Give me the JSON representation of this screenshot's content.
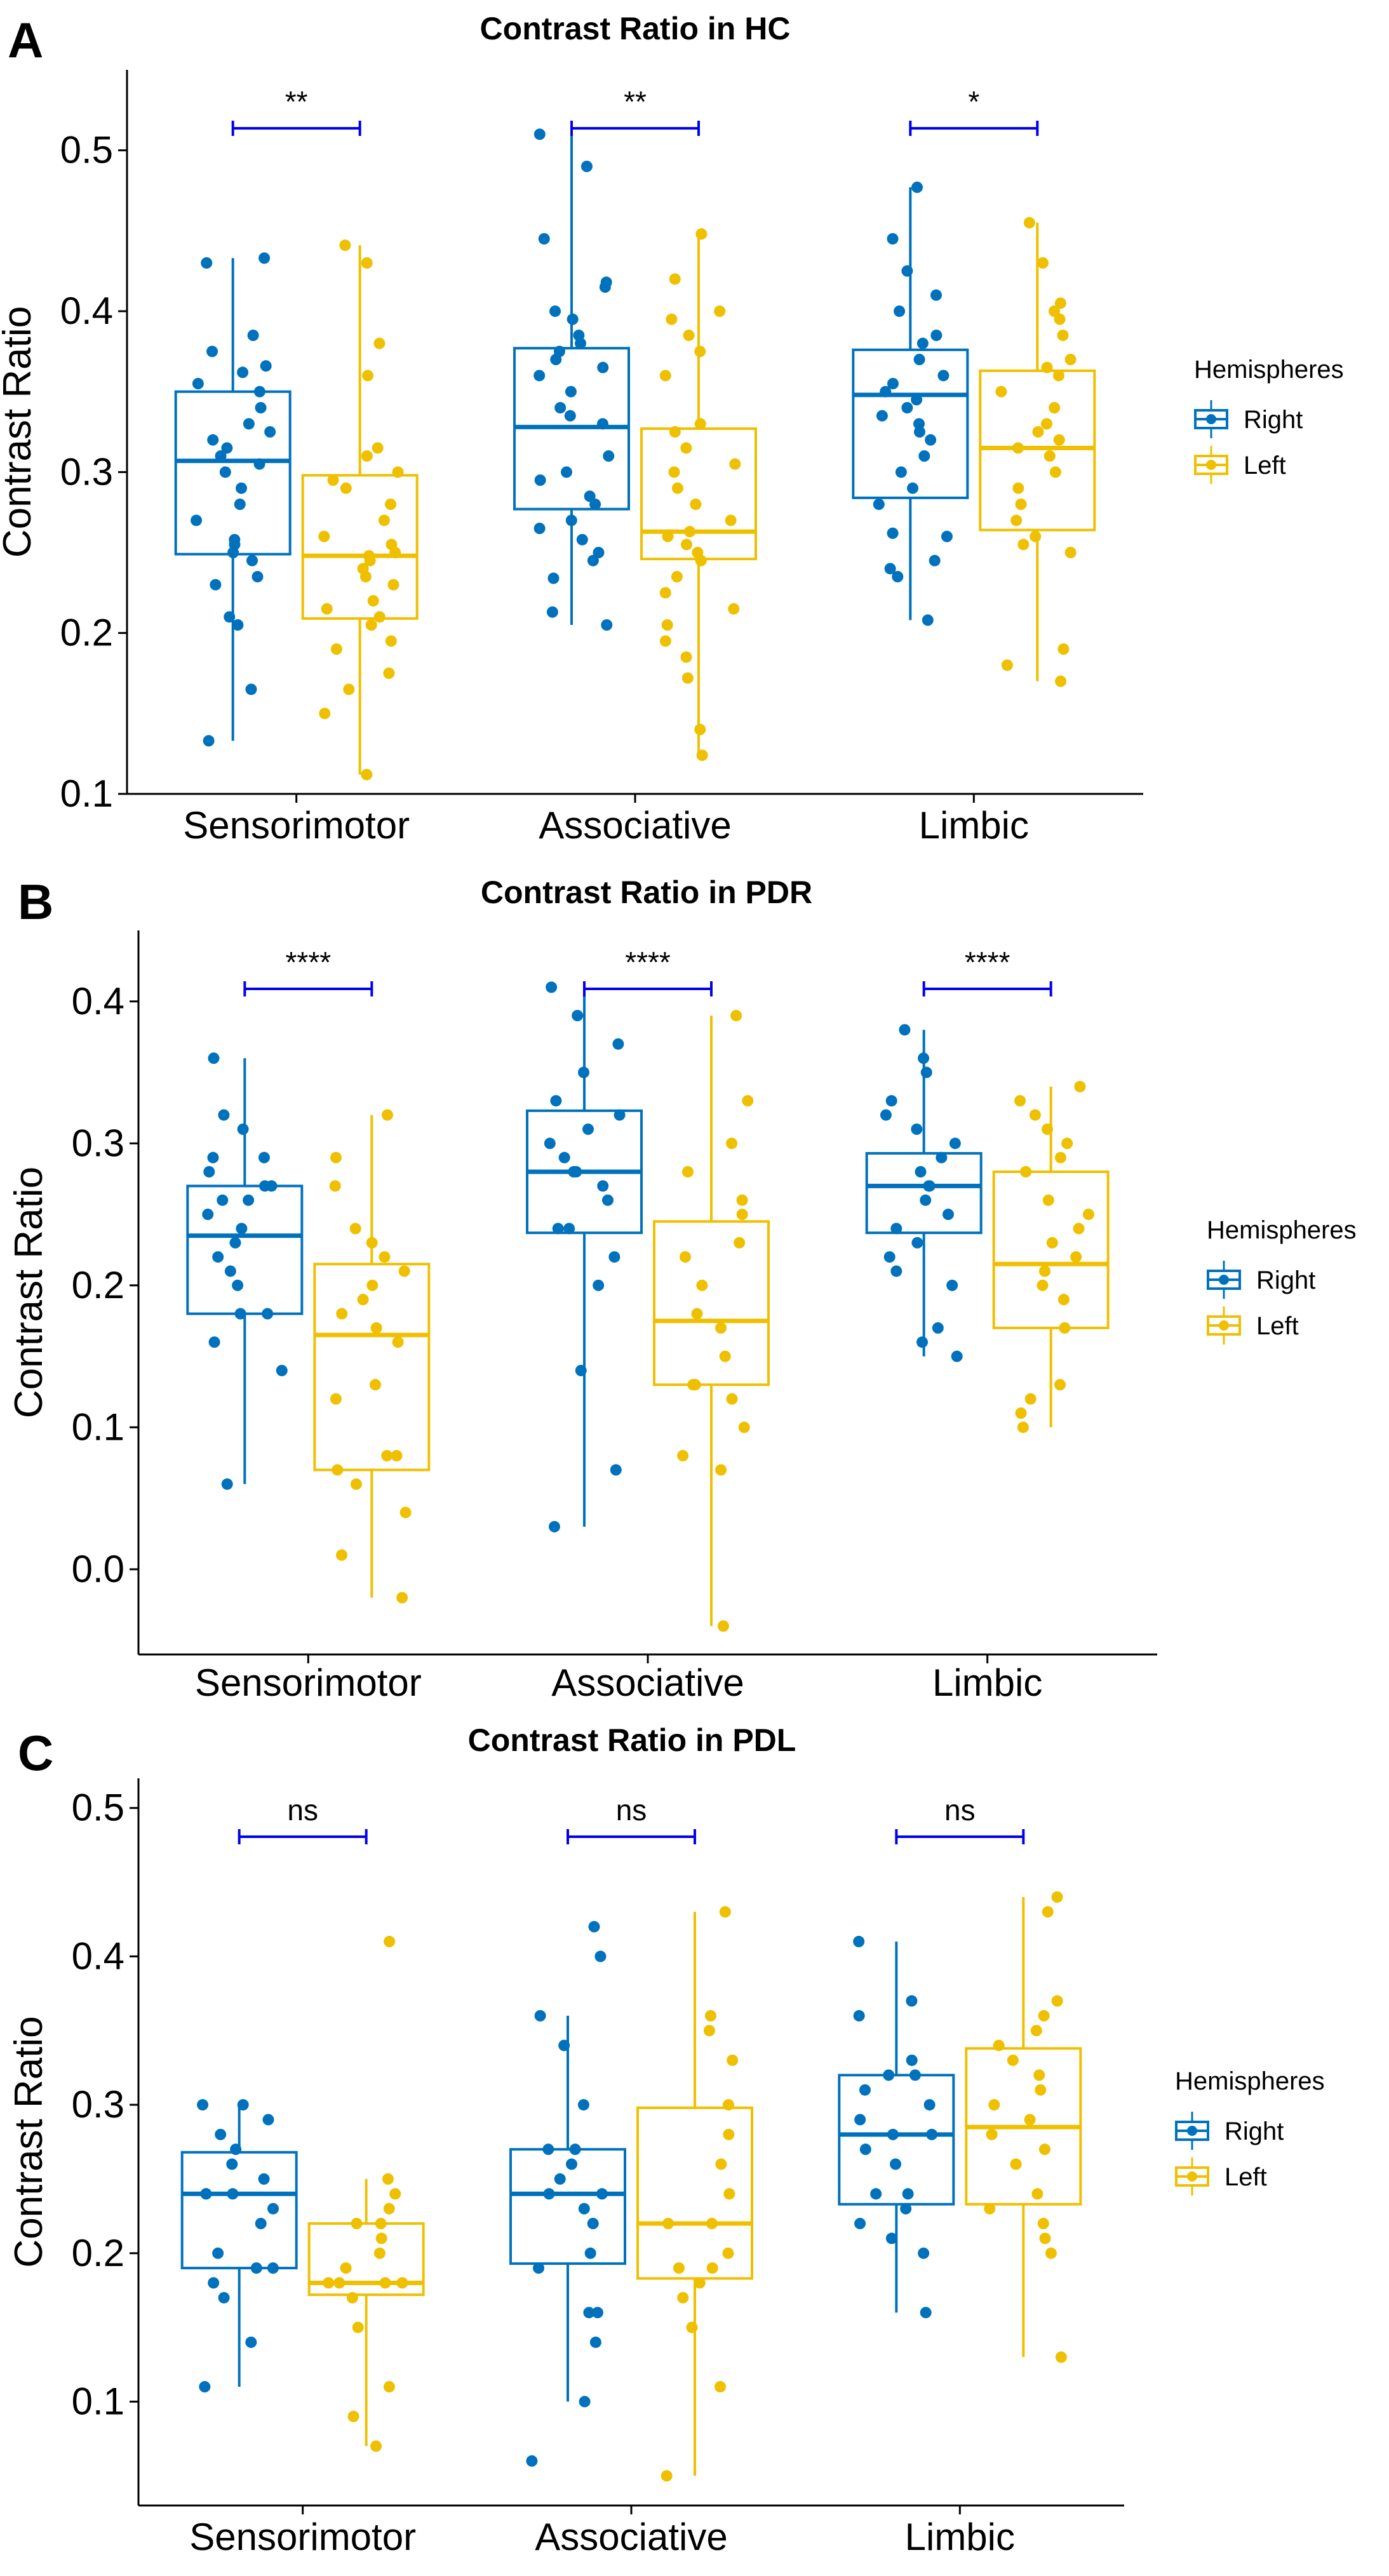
{
  "colors": {
    "right": "#0072BD",
    "left": "#EFC000",
    "bracket": "#0000EE"
  },
  "legend": {
    "title": "Hemispheres",
    "items": [
      "Right",
      "Left"
    ]
  },
  "chart_data": [
    {
      "type": "box",
      "panel": "A",
      "title": "Contrast Ratio in HC",
      "xlabel": "",
      "ylabel": "Contrast Ratio",
      "ylim": [
        0.1,
        0.55
      ],
      "yticks": [
        0.1,
        0.2,
        0.3,
        0.4,
        0.5
      ],
      "ytick_labels": [
        "0.1",
        "0.2",
        "0.3",
        "0.4",
        "0.5"
      ],
      "categories": [
        "Sensorimotor",
        "Associative",
        "Limbic"
      ],
      "significance": [
        "**",
        "**",
        "*"
      ],
      "series": [
        {
          "name": "Right",
          "boxes": [
            {
              "min": 0.133,
              "q1": 0.249,
              "median": 0.307,
              "q3": 0.35,
              "max": 0.433
            },
            {
              "min": 0.205,
              "q1": 0.277,
              "median": 0.328,
              "q3": 0.377,
              "max": 0.51
            },
            {
              "min": 0.208,
              "q1": 0.284,
              "median": 0.348,
              "q3": 0.376,
              "max": 0.477
            }
          ],
          "points": [
            [
              0.133,
              0.165,
              0.205,
              0.21,
              0.23,
              0.235,
              0.245,
              0.25,
              0.255,
              0.258,
              0.27,
              0.28,
              0.29,
              0.3,
              0.305,
              0.31,
              0.315,
              0.32,
              0.325,
              0.33,
              0.34,
              0.35,
              0.355,
              0.362,
              0.366,
              0.375,
              0.385,
              0.43,
              0.433
            ],
            [
              0.205,
              0.213,
              0.234,
              0.245,
              0.25,
              0.258,
              0.265,
              0.27,
              0.28,
              0.285,
              0.295,
              0.3,
              0.31,
              0.33,
              0.335,
              0.34,
              0.35,
              0.36,
              0.365,
              0.37,
              0.375,
              0.38,
              0.385,
              0.395,
              0.4,
              0.415,
              0.418,
              0.445,
              0.49,
              0.51
            ],
            [
              0.208,
              0.235,
              0.24,
              0.245,
              0.26,
              0.262,
              0.28,
              0.29,
              0.3,
              0.31,
              0.32,
              0.325,
              0.33,
              0.335,
              0.34,
              0.345,
              0.35,
              0.355,
              0.36,
              0.37,
              0.38,
              0.385,
              0.4,
              0.41,
              0.425,
              0.445,
              0.477
            ]
          ]
        },
        {
          "name": "Left",
          "boxes": [
            {
              "min": 0.112,
              "q1": 0.209,
              "median": 0.248,
              "q3": 0.298,
              "max": 0.441
            },
            {
              "min": 0.124,
              "q1": 0.246,
              "median": 0.263,
              "q3": 0.327,
              "max": 0.448
            },
            {
              "min": 0.17,
              "q1": 0.264,
              "median": 0.315,
              "q3": 0.363,
              "max": 0.455
            }
          ],
          "points": [
            [
              0.112,
              0.15,
              0.165,
              0.175,
              0.19,
              0.195,
              0.205,
              0.21,
              0.215,
              0.22,
              0.23,
              0.235,
              0.24,
              0.245,
              0.248,
              0.25,
              0.255,
              0.26,
              0.27,
              0.28,
              0.29,
              0.295,
              0.3,
              0.31,
              0.315,
              0.36,
              0.38,
              0.43,
              0.441
            ],
            [
              0.124,
              0.14,
              0.172,
              0.185,
              0.195,
              0.205,
              0.215,
              0.225,
              0.235,
              0.245,
              0.25,
              0.255,
              0.26,
              0.263,
              0.27,
              0.28,
              0.29,
              0.3,
              0.305,
              0.315,
              0.325,
              0.33,
              0.36,
              0.375,
              0.385,
              0.395,
              0.4,
              0.42,
              0.448
            ],
            [
              0.17,
              0.18,
              0.19,
              0.25,
              0.255,
              0.26,
              0.27,
              0.28,
              0.29,
              0.3,
              0.31,
              0.315,
              0.32,
              0.325,
              0.33,
              0.34,
              0.35,
              0.36,
              0.365,
              0.37,
              0.385,
              0.395,
              0.4,
              0.405,
              0.43,
              0.455
            ]
          ]
        }
      ]
    },
    {
      "type": "box",
      "panel": "B",
      "title": "Contrast Ratio in PDR",
      "xlabel": "",
      "ylabel": "Contrast Ratio",
      "ylim": [
        -0.06,
        0.45
      ],
      "yticks": [
        0.0,
        0.1,
        0.2,
        0.3,
        0.4
      ],
      "ytick_labels": [
        "0.0",
        "0.1",
        "0.2",
        "0.3",
        "0.4"
      ],
      "categories": [
        "Sensorimotor",
        "Associative",
        "Limbic"
      ],
      "significance": [
        "****",
        "****",
        "****"
      ],
      "series": [
        {
          "name": "Right",
          "boxes": [
            {
              "min": 0.06,
              "q1": 0.18,
              "median": 0.235,
              "q3": 0.27,
              "max": 0.36
            },
            {
              "min": 0.03,
              "q1": 0.237,
              "median": 0.28,
              "q3": 0.323,
              "max": 0.41
            },
            {
              "min": 0.15,
              "q1": 0.237,
              "median": 0.27,
              "q3": 0.293,
              "max": 0.38
            }
          ],
          "points": [
            [
              0.06,
              0.14,
              0.16,
              0.18,
              0.18,
              0.2,
              0.21,
              0.22,
              0.23,
              0.24,
              0.25,
              0.26,
              0.26,
              0.27,
              0.27,
              0.28,
              0.29,
              0.29,
              0.31,
              0.32,
              0.36
            ],
            [
              0.03,
              0.07,
              0.14,
              0.2,
              0.22,
              0.24,
              0.24,
              0.26,
              0.27,
              0.28,
              0.28,
              0.29,
              0.3,
              0.31,
              0.32,
              0.33,
              0.35,
              0.37,
              0.39,
              0.41
            ],
            [
              0.15,
              0.16,
              0.17,
              0.2,
              0.21,
              0.22,
              0.23,
              0.24,
              0.25,
              0.26,
              0.27,
              0.27,
              0.28,
              0.29,
              0.3,
              0.31,
              0.32,
              0.33,
              0.35,
              0.36,
              0.38
            ]
          ]
        },
        {
          "name": "Left",
          "boxes": [
            {
              "min": -0.02,
              "q1": 0.07,
              "median": 0.165,
              "q3": 0.215,
              "max": 0.32
            },
            {
              "min": -0.04,
              "q1": 0.13,
              "median": 0.175,
              "q3": 0.245,
              "max": 0.39
            },
            {
              "min": 0.1,
              "q1": 0.17,
              "median": 0.215,
              "q3": 0.28,
              "max": 0.34
            }
          ],
          "points": [
            [
              -0.02,
              0.01,
              0.04,
              0.06,
              0.07,
              0.08,
              0.08,
              0.12,
              0.13,
              0.16,
              0.17,
              0.18,
              0.19,
              0.2,
              0.21,
              0.22,
              0.23,
              0.24,
              0.27,
              0.29,
              0.32
            ],
            [
              -0.04,
              0.07,
              0.08,
              0.1,
              0.12,
              0.13,
              0.13,
              0.15,
              0.17,
              0.18,
              0.2,
              0.22,
              0.23,
              0.25,
              0.26,
              0.28,
              0.3,
              0.33,
              0.39
            ],
            [
              0.1,
              0.11,
              0.12,
              0.13,
              0.17,
              0.19,
              0.2,
              0.21,
              0.22,
              0.23,
              0.24,
              0.25,
              0.26,
              0.28,
              0.29,
              0.3,
              0.31,
              0.32,
              0.33,
              0.34
            ]
          ]
        }
      ]
    },
    {
      "type": "box",
      "panel": "C",
      "title": "Contrast Ratio in PDL",
      "xlabel": "",
      "ylabel": "Contrast Ratio",
      "ylim": [
        0.03,
        0.52
      ],
      "yticks": [
        0.1,
        0.2,
        0.3,
        0.4,
        0.5
      ],
      "ytick_labels": [
        "0.1",
        "0.2",
        "0.3",
        "0.4",
        "0.5"
      ],
      "categories": [
        "Sensorimotor",
        "Associative",
        "Limbic"
      ],
      "significance": [
        "ns",
        "ns",
        "ns"
      ],
      "series": [
        {
          "name": "Right",
          "boxes": [
            {
              "min": 0.11,
              "q1": 0.19,
              "median": 0.24,
              "q3": 0.268,
              "max": 0.3
            },
            {
              "min": 0.1,
              "q1": 0.193,
              "median": 0.24,
              "q3": 0.27,
              "max": 0.36
            },
            {
              "min": 0.16,
              "q1": 0.233,
              "median": 0.28,
              "q3": 0.32,
              "max": 0.41
            }
          ],
          "points": [
            [
              0.11,
              0.14,
              0.17,
              0.18,
              0.19,
              0.19,
              0.2,
              0.22,
              0.23,
              0.24,
              0.24,
              0.24,
              0.25,
              0.26,
              0.27,
              0.28,
              0.29,
              0.3,
              0.3
            ],
            [
              0.06,
              0.1,
              0.14,
              0.16,
              0.16,
              0.19,
              0.2,
              0.22,
              0.23,
              0.24,
              0.24,
              0.25,
              0.26,
              0.27,
              0.27,
              0.3,
              0.34,
              0.36,
              0.4,
              0.42
            ],
            [
              0.16,
              0.2,
              0.21,
              0.22,
              0.23,
              0.24,
              0.24,
              0.26,
              0.27,
              0.28,
              0.28,
              0.29,
              0.3,
              0.31,
              0.32,
              0.32,
              0.33,
              0.36,
              0.37,
              0.41
            ]
          ]
        },
        {
          "name": "Left",
          "boxes": [
            {
              "min": 0.07,
              "q1": 0.172,
              "median": 0.18,
              "q3": 0.22,
              "max": 0.25
            },
            {
              "min": 0.05,
              "q1": 0.183,
              "median": 0.22,
              "q3": 0.298,
              "max": 0.43
            },
            {
              "min": 0.13,
              "q1": 0.233,
              "median": 0.285,
              "q3": 0.338,
              "max": 0.44
            }
          ],
          "points": [
            [
              0.07,
              0.09,
              0.11,
              0.15,
              0.17,
              0.18,
              0.18,
              0.18,
              0.18,
              0.19,
              0.2,
              0.21,
              0.22,
              0.22,
              0.23,
              0.24,
              0.25,
              0.41
            ],
            [
              0.05,
              0.11,
              0.15,
              0.17,
              0.18,
              0.19,
              0.19,
              0.2,
              0.22,
              0.22,
              0.24,
              0.26,
              0.28,
              0.3,
              0.33,
              0.35,
              0.36,
              0.43
            ],
            [
              0.13,
              0.2,
              0.21,
              0.22,
              0.23,
              0.24,
              0.26,
              0.27,
              0.28,
              0.29,
              0.3,
              0.31,
              0.32,
              0.33,
              0.34,
              0.35,
              0.36,
              0.37,
              0.43,
              0.44
            ]
          ]
        }
      ]
    }
  ]
}
